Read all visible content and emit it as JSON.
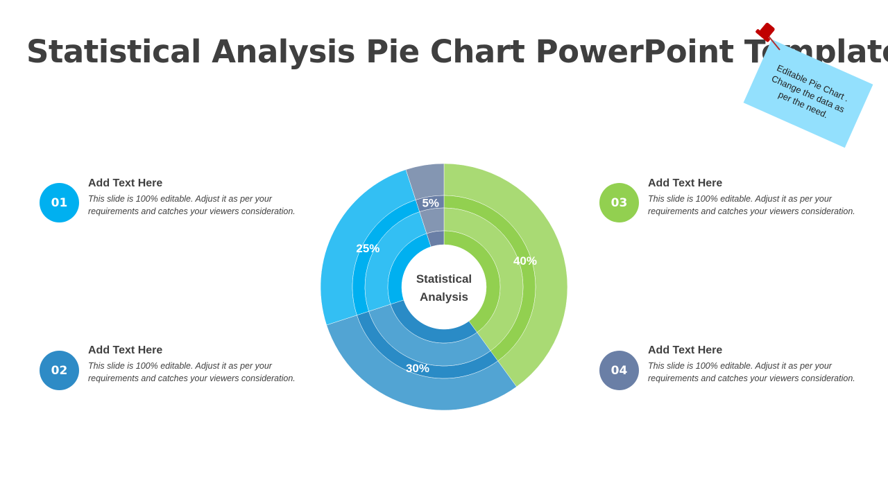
{
  "title": "Statistical Analysis Pie Chart PowerPoint Template",
  "note": "Editable Pie Chart . Change the data as per the need.",
  "items": [
    {
      "num": "01",
      "heading": "Add Text Here",
      "body": "This slide is 100%  editable. Adjust it as per your requirements and catches your viewers consideration.",
      "color": "#00b0f0"
    },
    {
      "num": "02",
      "heading": "Add Text Here",
      "body": "This slide is 100%  editable. Adjust it as per your requirements and catches your viewers consideration.",
      "color": "#2e8bc6"
    },
    {
      "num": "03",
      "heading": "Add Text Here",
      "body": "This slide is 100%  editable. Adjust it as per your requirements and catches your viewers consideration.",
      "color": "#92d050"
    },
    {
      "num": "04",
      "heading": "Add Text Here",
      "body": "This slide is 100%  editable. Adjust it as per your requirements and catches your viewers consideration.",
      "color": "#6a7fa6"
    }
  ],
  "chart_data": {
    "type": "pie",
    "title": "Statistical Analysis",
    "center_label": [
      "Statistical",
      "Analysis"
    ],
    "slices": [
      {
        "label": "40%",
        "value": 40,
        "light": "#a9da74",
        "dark": "#92d050"
      },
      {
        "label": "30%",
        "value": 30,
        "light": "#52a4d3",
        "dark": "#2a8bc6"
      },
      {
        "label": "25%",
        "value": 25,
        "light": "#33bff3",
        "dark": "#00b0f0"
      },
      {
        "label": "5%",
        "value": 5,
        "light": "#8496b2",
        "dark": "#6a7fa6"
      }
    ]
  }
}
